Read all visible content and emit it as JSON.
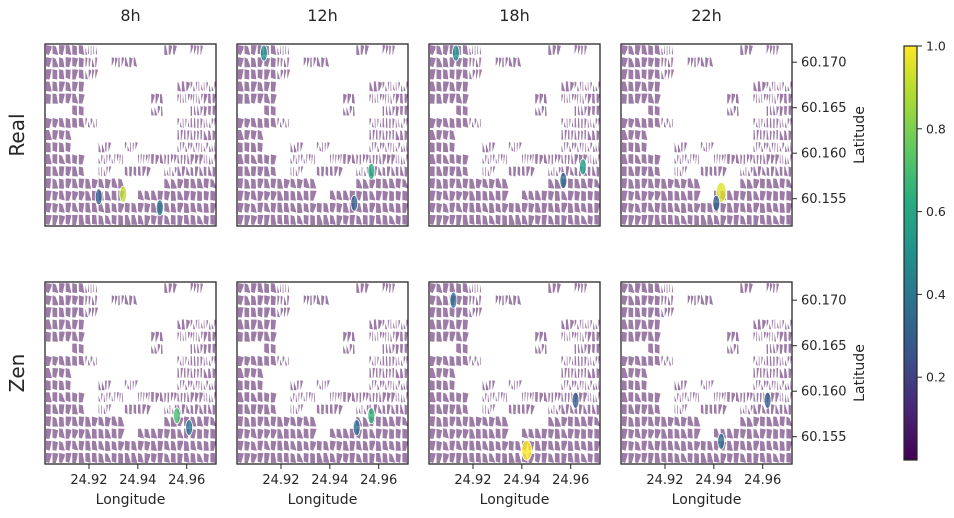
{
  "chart_data": {
    "type": "heatmap",
    "columns": [
      "8h",
      "12h",
      "18h",
      "22h"
    ],
    "rows": [
      "Real",
      "Zen"
    ],
    "xlabel": "Longitude",
    "ylabel": "Latitude",
    "xticks": [
      "24.92",
      "24.94",
      "24.96"
    ],
    "yticks": [
      "60.170",
      "60.165",
      "60.160",
      "60.155"
    ],
    "xlim": [
      24.902,
      24.972
    ],
    "ylim": [
      60.152,
      60.172
    ],
    "colorbar": {
      "ticks": [
        "0.2",
        "0.4",
        "0.6",
        "0.8",
        "1.0"
      ],
      "range": [
        0,
        1
      ],
      "colormap": "viridis"
    },
    "panels": [
      {
        "row": "Real",
        "col": "8h",
        "highlights": [
          {
            "lon": 24.934,
            "lat": 60.1555,
            "value": 0.9
          },
          {
            "lon": 24.949,
            "lat": 60.154,
            "value": 0.4
          },
          {
            "lon": 24.924,
            "lat": 60.1552,
            "value": 0.3
          }
        ]
      },
      {
        "row": "Real",
        "col": "12h",
        "highlights": [
          {
            "lon": 24.957,
            "lat": 60.158,
            "value": 0.6
          },
          {
            "lon": 24.913,
            "lat": 60.171,
            "value": 0.5
          },
          {
            "lon": 24.95,
            "lat": 60.1545,
            "value": 0.3
          }
        ]
      },
      {
        "row": "Real",
        "col": "18h",
        "highlights": [
          {
            "lon": 24.965,
            "lat": 60.1585,
            "value": 0.55
          },
          {
            "lon": 24.957,
            "lat": 60.157,
            "value": 0.35
          },
          {
            "lon": 24.913,
            "lat": 60.171,
            "value": 0.5
          }
        ]
      },
      {
        "row": "Real",
        "col": "22h",
        "highlights": [
          {
            "lon": 24.943,
            "lat": 60.1557,
            "value": 0.95
          },
          {
            "lon": 24.941,
            "lat": 60.1545,
            "value": 0.3
          }
        ]
      },
      {
        "row": "Zen",
        "col": "8h",
        "highlights": [
          {
            "lon": 24.956,
            "lat": 60.1573,
            "value": 0.7
          },
          {
            "lon": 24.961,
            "lat": 60.156,
            "value": 0.4
          }
        ]
      },
      {
        "row": "Zen",
        "col": "12h",
        "highlights": [
          {
            "lon": 24.957,
            "lat": 60.1573,
            "value": 0.65
          },
          {
            "lon": 24.951,
            "lat": 60.156,
            "value": 0.35
          }
        ]
      },
      {
        "row": "Zen",
        "col": "18h",
        "highlights": [
          {
            "lon": 24.942,
            "lat": 60.1535,
            "value": 1.0
          },
          {
            "lon": 24.912,
            "lat": 60.17,
            "value": 0.35
          },
          {
            "lon": 24.962,
            "lat": 60.159,
            "value": 0.3
          }
        ]
      },
      {
        "row": "Zen",
        "col": "22h",
        "highlights": [
          {
            "lon": 24.943,
            "lat": 60.1545,
            "value": 0.35
          },
          {
            "lon": 24.962,
            "lat": 60.159,
            "value": 0.3
          }
        ]
      }
    ]
  }
}
